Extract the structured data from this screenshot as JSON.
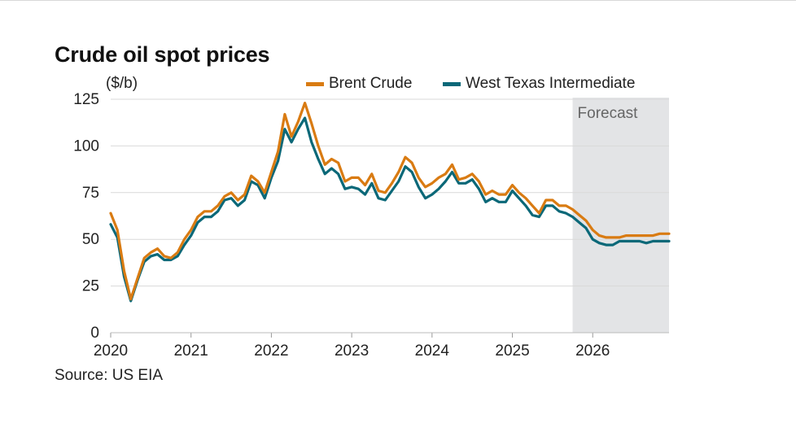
{
  "chart_data": {
    "type": "line",
    "title": "Crude oil spot prices",
    "ylabel": "($/b)",
    "xlabel": "",
    "ylim": [
      0,
      125
    ],
    "yticks": [
      0,
      25,
      50,
      75,
      100,
      125
    ],
    "xlim": [
      2020.0,
      2026.95
    ],
    "xticks": [
      "2020",
      "2021",
      "2022",
      "2023",
      "2024",
      "2025",
      "2026"
    ],
    "grid": true,
    "legend_position": "top-right",
    "forecast_region": {
      "label": "Forecast",
      "start": 2025.75,
      "end": 2026.95
    },
    "source": "Source: US EIA",
    "colors": {
      "brent": "#d97b12",
      "wti": "#0b6878",
      "forecast_shade": "#e3e4e6",
      "grid": "#d9d9d9"
    },
    "series": [
      {
        "name": "Brent Crude",
        "points": [
          [
            2020.0,
            64
          ],
          [
            2020.083,
            55
          ],
          [
            2020.167,
            33
          ],
          [
            2020.25,
            18
          ],
          [
            2020.333,
            29
          ],
          [
            2020.417,
            40
          ],
          [
            2020.5,
            43
          ],
          [
            2020.583,
            45
          ],
          [
            2020.667,
            41
          ],
          [
            2020.75,
            40
          ],
          [
            2020.833,
            43
          ],
          [
            2020.917,
            50
          ],
          [
            2021.0,
            55
          ],
          [
            2021.083,
            62
          ],
          [
            2021.167,
            65
          ],
          [
            2021.25,
            65
          ],
          [
            2021.333,
            68
          ],
          [
            2021.417,
            73
          ],
          [
            2021.5,
            75
          ],
          [
            2021.583,
            71
          ],
          [
            2021.667,
            74
          ],
          [
            2021.75,
            84
          ],
          [
            2021.833,
            81
          ],
          [
            2021.917,
            75
          ],
          [
            2022.0,
            86
          ],
          [
            2022.083,
            97
          ],
          [
            2022.167,
            117
          ],
          [
            2022.25,
            105
          ],
          [
            2022.333,
            113
          ],
          [
            2022.417,
            123
          ],
          [
            2022.5,
            112
          ],
          [
            2022.583,
            100
          ],
          [
            2022.667,
            90
          ],
          [
            2022.75,
            93
          ],
          [
            2022.833,
            91
          ],
          [
            2022.917,
            81
          ],
          [
            2023.0,
            83
          ],
          [
            2023.083,
            83
          ],
          [
            2023.167,
            79
          ],
          [
            2023.25,
            85
          ],
          [
            2023.333,
            76
          ],
          [
            2023.417,
            75
          ],
          [
            2023.5,
            80
          ],
          [
            2023.583,
            86
          ],
          [
            2023.667,
            94
          ],
          [
            2023.75,
            91
          ],
          [
            2023.833,
            83
          ],
          [
            2023.917,
            78
          ],
          [
            2024.0,
            80
          ],
          [
            2024.083,
            83
          ],
          [
            2024.167,
            85
          ],
          [
            2024.25,
            90
          ],
          [
            2024.333,
            82
          ],
          [
            2024.417,
            83
          ],
          [
            2024.5,
            85
          ],
          [
            2024.583,
            81
          ],
          [
            2024.667,
            74
          ],
          [
            2024.75,
            76
          ],
          [
            2024.833,
            74
          ],
          [
            2024.917,
            74
          ],
          [
            2025.0,
            79
          ],
          [
            2025.083,
            75
          ],
          [
            2025.167,
            72
          ],
          [
            2025.25,
            68
          ],
          [
            2025.333,
            64
          ],
          [
            2025.417,
            71
          ],
          [
            2025.5,
            71
          ],
          [
            2025.583,
            68
          ],
          [
            2025.667,
            68
          ],
          [
            2025.75,
            66
          ],
          [
            2025.833,
            63
          ],
          [
            2025.917,
            60
          ],
          [
            2026.0,
            55
          ],
          [
            2026.083,
            52
          ],
          [
            2026.167,
            51
          ],
          [
            2026.25,
            51
          ],
          [
            2026.333,
            51
          ],
          [
            2026.417,
            52
          ],
          [
            2026.5,
            52
          ],
          [
            2026.583,
            52
          ],
          [
            2026.667,
            52
          ],
          [
            2026.75,
            52
          ],
          [
            2026.833,
            53
          ],
          [
            2026.95,
            53
          ]
        ]
      },
      {
        "name": "West Texas Intermediate",
        "points": [
          [
            2020.0,
            58
          ],
          [
            2020.083,
            51
          ],
          [
            2020.167,
            30
          ],
          [
            2020.25,
            17
          ],
          [
            2020.333,
            28
          ],
          [
            2020.417,
            38
          ],
          [
            2020.5,
            41
          ],
          [
            2020.583,
            42
          ],
          [
            2020.667,
            39
          ],
          [
            2020.75,
            39
          ],
          [
            2020.833,
            41
          ],
          [
            2020.917,
            47
          ],
          [
            2021.0,
            52
          ],
          [
            2021.083,
            59
          ],
          [
            2021.167,
            62
          ],
          [
            2021.25,
            62
          ],
          [
            2021.333,
            65
          ],
          [
            2021.417,
            71
          ],
          [
            2021.5,
            72
          ],
          [
            2021.583,
            68
          ],
          [
            2021.667,
            71
          ],
          [
            2021.75,
            81
          ],
          [
            2021.833,
            79
          ],
          [
            2021.917,
            72
          ],
          [
            2022.0,
            83
          ],
          [
            2022.083,
            92
          ],
          [
            2022.167,
            109
          ],
          [
            2022.25,
            102
          ],
          [
            2022.333,
            109
          ],
          [
            2022.417,
            115
          ],
          [
            2022.5,
            102
          ],
          [
            2022.583,
            93
          ],
          [
            2022.667,
            85
          ],
          [
            2022.75,
            88
          ],
          [
            2022.833,
            85
          ],
          [
            2022.917,
            77
          ],
          [
            2023.0,
            78
          ],
          [
            2023.083,
            77
          ],
          [
            2023.167,
            74
          ],
          [
            2023.25,
            80
          ],
          [
            2023.333,
            72
          ],
          [
            2023.417,
            71
          ],
          [
            2023.5,
            76
          ],
          [
            2023.583,
            81
          ],
          [
            2023.667,
            89
          ],
          [
            2023.75,
            86
          ],
          [
            2023.833,
            78
          ],
          [
            2023.917,
            72
          ],
          [
            2024.0,
            74
          ],
          [
            2024.083,
            77
          ],
          [
            2024.167,
            81
          ],
          [
            2024.25,
            86
          ],
          [
            2024.333,
            80
          ],
          [
            2024.417,
            80
          ],
          [
            2024.5,
            82
          ],
          [
            2024.583,
            77
          ],
          [
            2024.667,
            70
          ],
          [
            2024.75,
            72
          ],
          [
            2024.833,
            70
          ],
          [
            2024.917,
            70
          ],
          [
            2025.0,
            76
          ],
          [
            2025.083,
            72
          ],
          [
            2025.167,
            68
          ],
          [
            2025.25,
            63
          ],
          [
            2025.333,
            62
          ],
          [
            2025.417,
            68
          ],
          [
            2025.5,
            68
          ],
          [
            2025.583,
            65
          ],
          [
            2025.667,
            64
          ],
          [
            2025.75,
            62
          ],
          [
            2025.833,
            59
          ],
          [
            2025.917,
            56
          ],
          [
            2026.0,
            50
          ],
          [
            2026.083,
            48
          ],
          [
            2026.167,
            47
          ],
          [
            2026.25,
            47
          ],
          [
            2026.333,
            49
          ],
          [
            2026.417,
            49
          ],
          [
            2026.5,
            49
          ],
          [
            2026.583,
            49
          ],
          [
            2026.667,
            48
          ],
          [
            2026.75,
            49
          ],
          [
            2026.833,
            49
          ],
          [
            2026.95,
            49
          ]
        ]
      }
    ]
  }
}
